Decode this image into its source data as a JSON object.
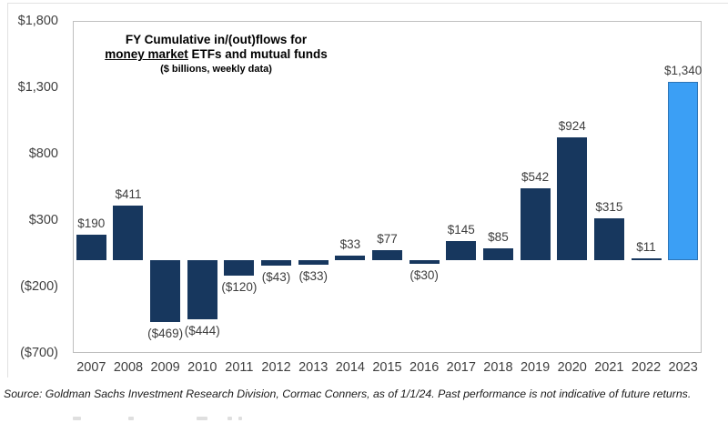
{
  "chart_data": {
    "type": "bar",
    "title_line1": "FY Cumulative in/(out)flows for",
    "title_line2_underlined": "money market",
    "title_line2_rest": " ETFs and mutual funds",
    "subtitle": "($ billions, weekly data)",
    "categories": [
      "2007",
      "2008",
      "2009",
      "2010",
      "2011",
      "2012",
      "2013",
      "2014",
      "2015",
      "2016",
      "2017",
      "2018",
      "2019",
      "2020",
      "2021",
      "2022",
      "2023"
    ],
    "values": [
      190,
      411,
      -469,
      -444,
      -120,
      -43,
      -33,
      33,
      77,
      -30,
      145,
      85,
      542,
      924,
      315,
      11,
      1340
    ],
    "value_labels": [
      "$190",
      "$411",
      "($469)",
      "($444)",
      "($120)",
      "($43)",
      "($33)",
      "$33",
      "$77",
      "($30)",
      "$145",
      "$85",
      "$542",
      "$924",
      "$315",
      "$11",
      "$1,340"
    ],
    "y_ticks": [
      {
        "label": "$1,800",
        "value": 1800
      },
      {
        "label": "$1,300",
        "value": 1300
      },
      {
        "label": "$800",
        "value": 800
      },
      {
        "label": "$300",
        "value": 300
      },
      {
        "label": "($200)",
        "value": -200
      },
      {
        "label": "($700)",
        "value": -700
      }
    ],
    "ylim": [
      -700,
      1800
    ],
    "gridlines": false,
    "legend_position": "none",
    "bar_color": "#17375E",
    "highlight_bar": {
      "index": 16,
      "fill": "#3B9FF5",
      "border": "#2E75B6"
    },
    "label_color": "#3d3d3d",
    "axis_text_color": "#3f3f3f"
  },
  "source_note": "Source: Goldman Sachs Investment Research Division, Cormac Conners, as of 1/1/24. Past performance is not indicative of future returns."
}
